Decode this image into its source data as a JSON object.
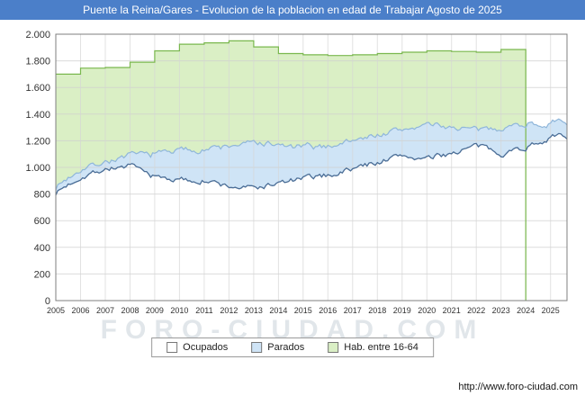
{
  "title_bar": {
    "title": "Puente la Reina/Gares - Evolucion de la poblacion en edad de Trabajar Agosto de 2025",
    "bg_color": "#4b7fc9",
    "text_color": "#ffffff"
  },
  "watermark": "FORO-CIUDAD.COM",
  "footer": {
    "url": "http://www.foro-ciudad.com"
  },
  "chart_data": {
    "type": "area",
    "title": "Puente la Reina/Gares - Evolucion de la poblacion en edad de Trabajar Agosto de 2025",
    "x": [
      2005,
      2006,
      2007,
      2008,
      2009,
      2010,
      2011,
      2012,
      2013,
      2014,
      2015,
      2016,
      2017,
      2018,
      2019,
      2020,
      2021,
      2022,
      2023,
      2024,
      2025
    ],
    "x_tick_labels": [
      "2005",
      "2006",
      "2007",
      "2008",
      "2009",
      "2010",
      "2011",
      "2012",
      "2013",
      "2014",
      "2015",
      "2016",
      "2017",
      "2018",
      "2019",
      "2020",
      "2021",
      "2022",
      "2023",
      "2024",
      "2025"
    ],
    "x_domain": [
      2005,
      2025.667
    ],
    "resolution": "monthly",
    "ylim": [
      0,
      2000
    ],
    "y_ticks": [
      "0",
      "200",
      "400",
      "600",
      "800",
      "1.000",
      "1.200",
      "1.400",
      "1.600",
      "1.800",
      "2.000"
    ],
    "grid": true,
    "legend_position": "bottom",
    "series": [
      {
        "name": "Ocupados",
        "fill_color": "#ffffff",
        "line_color": "#4a6d96",
        "stacking": "base",
        "values": [
          810,
          930,
          990,
          1010,
          930,
          905,
          900,
          855,
          845,
          880,
          915,
          940,
          990,
          1040,
          1090,
          1060,
          1110,
          1160,
          1110,
          1150,
          1230
        ]
      },
      {
        "name": "Parados",
        "fill_color": "#cfe4f6",
        "line_color": "#8fb6da",
        "stacking": "stacked on Ocupados",
        "values": [
          45,
          60,
          55,
          75,
          175,
          220,
          240,
          300,
          340,
          280,
          235,
          220,
          215,
          205,
          190,
          260,
          195,
          115,
          190,
          180,
          100
        ]
      },
      {
        "name": "Hab. entre 16-64",
        "fill_color": "#daefc5",
        "line_color": "#7ab84e",
        "stacking": "independent, annual steps",
        "years": [
          2005,
          2006,
          2007,
          2008,
          2009,
          2010,
          2011,
          2012,
          2013,
          2014,
          2015,
          2016,
          2017,
          2018,
          2019,
          2020,
          2021,
          2022,
          2023
        ],
        "values": [
          1700,
          1745,
          1750,
          1790,
          1875,
          1925,
          1935,
          1950,
          1905,
          1855,
          1845,
          1840,
          1845,
          1855,
          1865,
          1875,
          1870,
          1865,
          1885
        ]
      }
    ]
  }
}
